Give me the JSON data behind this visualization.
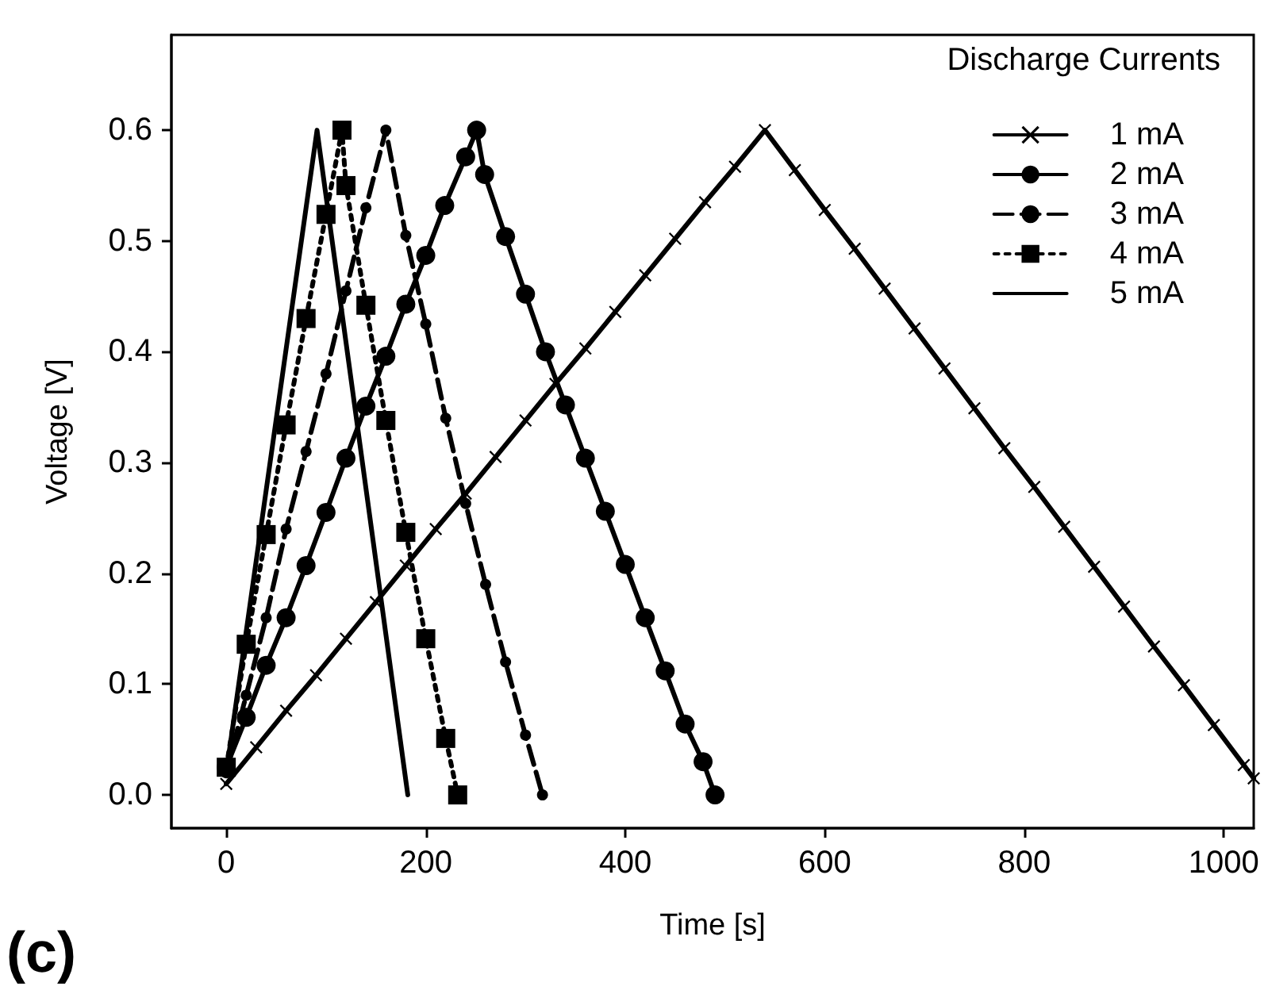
{
  "chart_data": {
    "type": "line",
    "xlabel": "Time [s]",
    "ylabel": "Voltage [V]",
    "legend_title": "Discharge Currents",
    "annotations": [
      "(c)"
    ],
    "xlim": [
      -55,
      1030
    ],
    "xticks": [
      0,
      200,
      400,
      600,
      800,
      1000
    ],
    "ylim": [
      -0.03,
      0.686
    ],
    "yticks": [
      {
        "value": 0,
        "label": "0.0"
      },
      0.1,
      0.2,
      0.3,
      0.4,
      0.5,
      0.6
    ],
    "grid": false,
    "legend": "top right",
    "series": [
      {
        "name": "1 mA",
        "color": "#000000",
        "marker": "cross",
        "line_style": "solid",
        "x": [
          0,
          30,
          60,
          90,
          120,
          150,
          180,
          210,
          240,
          270,
          300,
          330,
          360,
          390,
          420,
          450,
          480,
          510,
          540,
          570,
          600,
          630,
          660,
          690,
          720,
          750,
          780,
          810,
          840,
          870,
          900,
          930,
          960,
          990,
          1020,
          1030
        ],
        "values": [
          0.01,
          0.043,
          0.076,
          0.108,
          0.141,
          0.174,
          0.207,
          0.24,
          0.272,
          0.305,
          0.338,
          0.371,
          0.403,
          0.436,
          0.469,
          0.502,
          0.535,
          0.567,
          0.6,
          0.564,
          0.528,
          0.493,
          0.457,
          0.421,
          0.385,
          0.349,
          0.313,
          0.278,
          0.242,
          0.206,
          0.17,
          0.134,
          0.099,
          0.063,
          0.027,
          0.015
        ]
      },
      {
        "name": "2 mA",
        "color": "#000000",
        "marker": "circle",
        "line_style": "solid",
        "x": [
          0,
          20,
          40,
          60,
          80,
          100,
          120,
          140,
          160,
          180,
          200,
          219,
          240,
          251,
          259,
          280,
          300,
          320,
          340,
          360,
          380,
          400,
          420,
          440,
          460,
          478,
          490
        ],
        "values": [
          0.025,
          0.07,
          0.117,
          0.16,
          0.207,
          0.255,
          0.304,
          0.351,
          0.396,
          0.443,
          0.487,
          0.532,
          0.576,
          0.6,
          0.56,
          0.504,
          0.452,
          0.4,
          0.352,
          0.304,
          0.256,
          0.208,
          0.16,
          0.112,
          0.064,
          0.03,
          0.0
        ]
      },
      {
        "name": "3 mA",
        "color": "#000000",
        "marker": "circle",
        "line_style": "dashed",
        "x": [
          0,
          20,
          40,
          60,
          80,
          100,
          120,
          140,
          160,
          180,
          200,
          220,
          240,
          260,
          280,
          300,
          317
        ],
        "values": [
          0.02,
          0.09,
          0.16,
          0.24,
          0.31,
          0.38,
          0.455,
          0.53,
          0.6,
          0.505,
          0.425,
          0.34,
          0.263,
          0.19,
          0.12,
          0.054,
          0.0
        ]
      },
      {
        "name": "4 mA",
        "color": "#000000",
        "marker": "square",
        "line_style": "dotted",
        "x": [
          0,
          20,
          40,
          60,
          80,
          100,
          116,
          120,
          140,
          160,
          180,
          200,
          220,
          232
        ],
        "values": [
          0.025,
          0.136,
          0.235,
          0.334,
          0.43,
          0.524,
          0.6,
          0.55,
          0.442,
          0.338,
          0.237,
          0.141,
          0.051,
          0.0
        ]
      },
      {
        "name": "5 mA",
        "color": "#000000",
        "marker": "none",
        "line_style": "solid",
        "x": [
          0,
          91,
          182
        ],
        "values": [
          0.02,
          0.6,
          0.0
        ]
      }
    ]
  }
}
